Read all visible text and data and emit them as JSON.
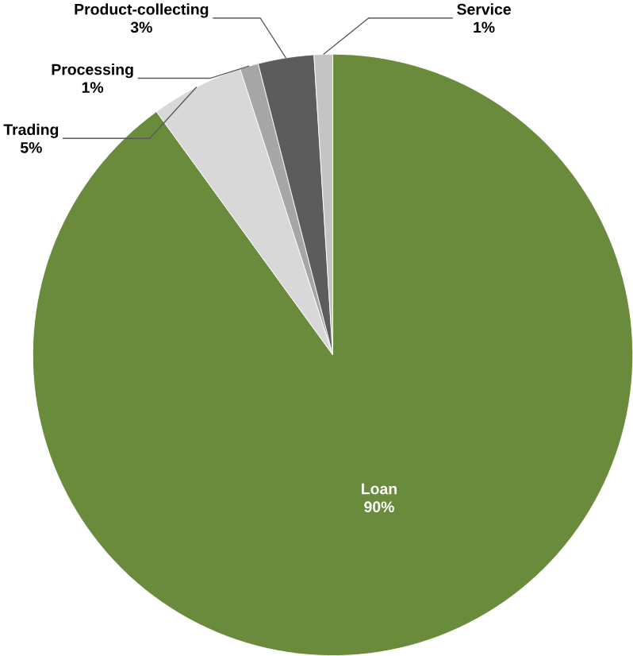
{
  "chart_data": {
    "type": "pie",
    "categories": [
      "Loan",
      "Trading",
      "Processing",
      "Product-collecting",
      "Service"
    ],
    "values": [
      90,
      5,
      1,
      3,
      1
    ],
    "value_labels": [
      "90%",
      "5%",
      "1%",
      "3%",
      "1%"
    ],
    "colors": [
      "#6a8a3c",
      "#d8d8d8",
      "#a6a6a6",
      "#5c5c5c",
      "#c4c4c4"
    ]
  }
}
